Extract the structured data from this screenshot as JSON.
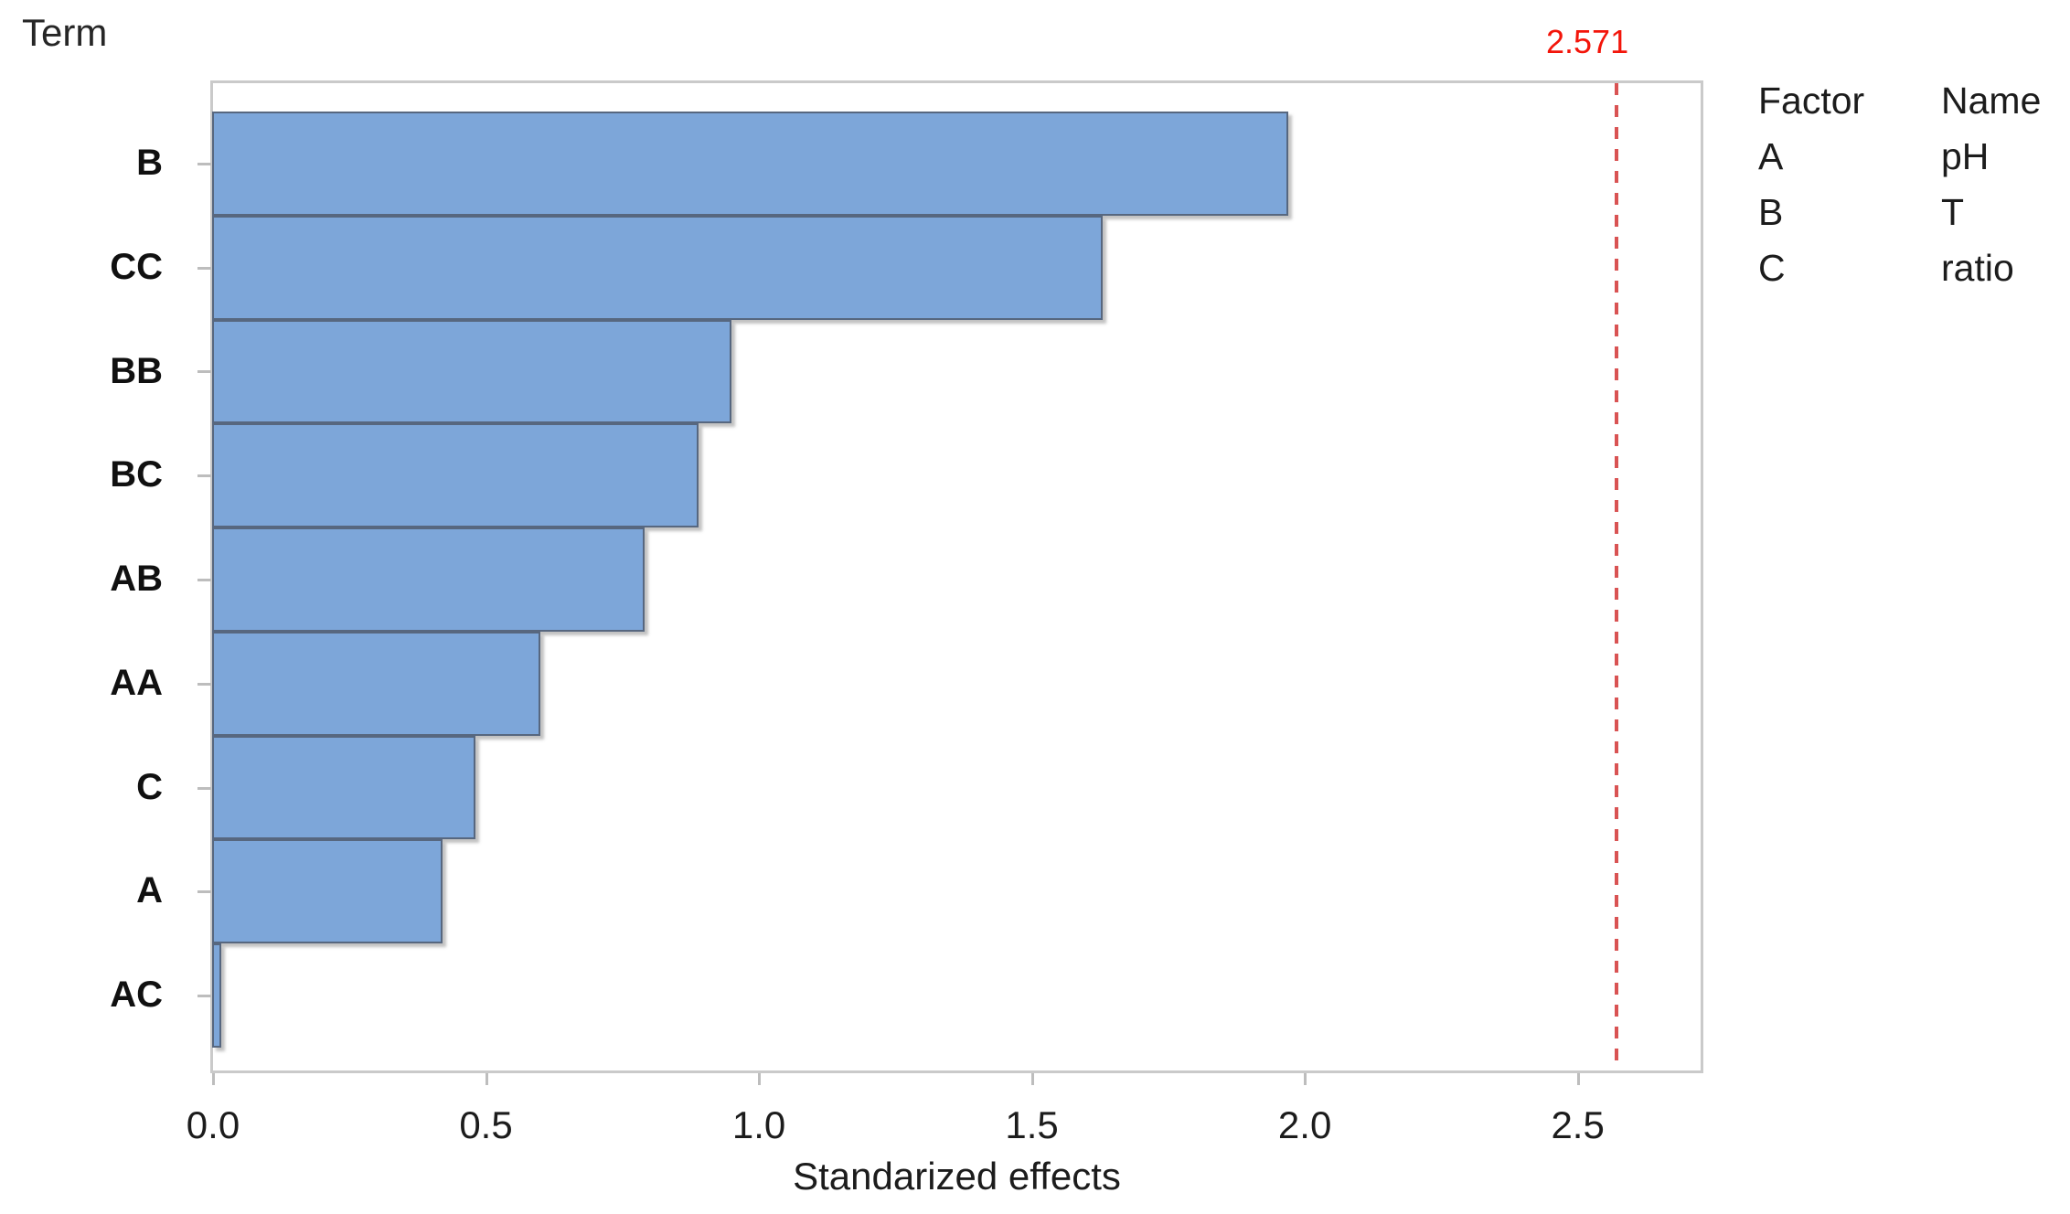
{
  "chart_data": {
    "type": "bar",
    "orientation": "horizontal",
    "categories": [
      "B",
      "CC",
      "BB",
      "BC",
      "AB",
      "AA",
      "C",
      "A",
      "AC"
    ],
    "values": [
      1.97,
      1.63,
      0.95,
      0.89,
      0.79,
      0.6,
      0.48,
      0.42,
      0.015
    ],
    "xlabel": "Standarized effects",
    "ylabel": "Term",
    "xlim": [
      0,
      2.725
    ],
    "x_ticks": [
      "0.0",
      "0.5",
      "1.0",
      "1.5",
      "2.0",
      "2.5"
    ],
    "x_tick_values": [
      0,
      0.5,
      1.0,
      1.5,
      2.0,
      2.5
    ],
    "grid": false,
    "reference_line": {
      "value": 2.571,
      "label": "2.571"
    },
    "bar_color": "#7da6d9",
    "bar_border_color": "#57677f",
    "reference_line_color": "#d95353",
    "reference_label_color": "#f3150a",
    "legend_position": "right"
  },
  "legend": {
    "headers": {
      "factor": "Factor",
      "name": "Name"
    },
    "rows": [
      {
        "factor": "A",
        "name": "pH"
      },
      {
        "factor": "B",
        "name": "T"
      },
      {
        "factor": "C",
        "name": "ratio"
      }
    ]
  }
}
